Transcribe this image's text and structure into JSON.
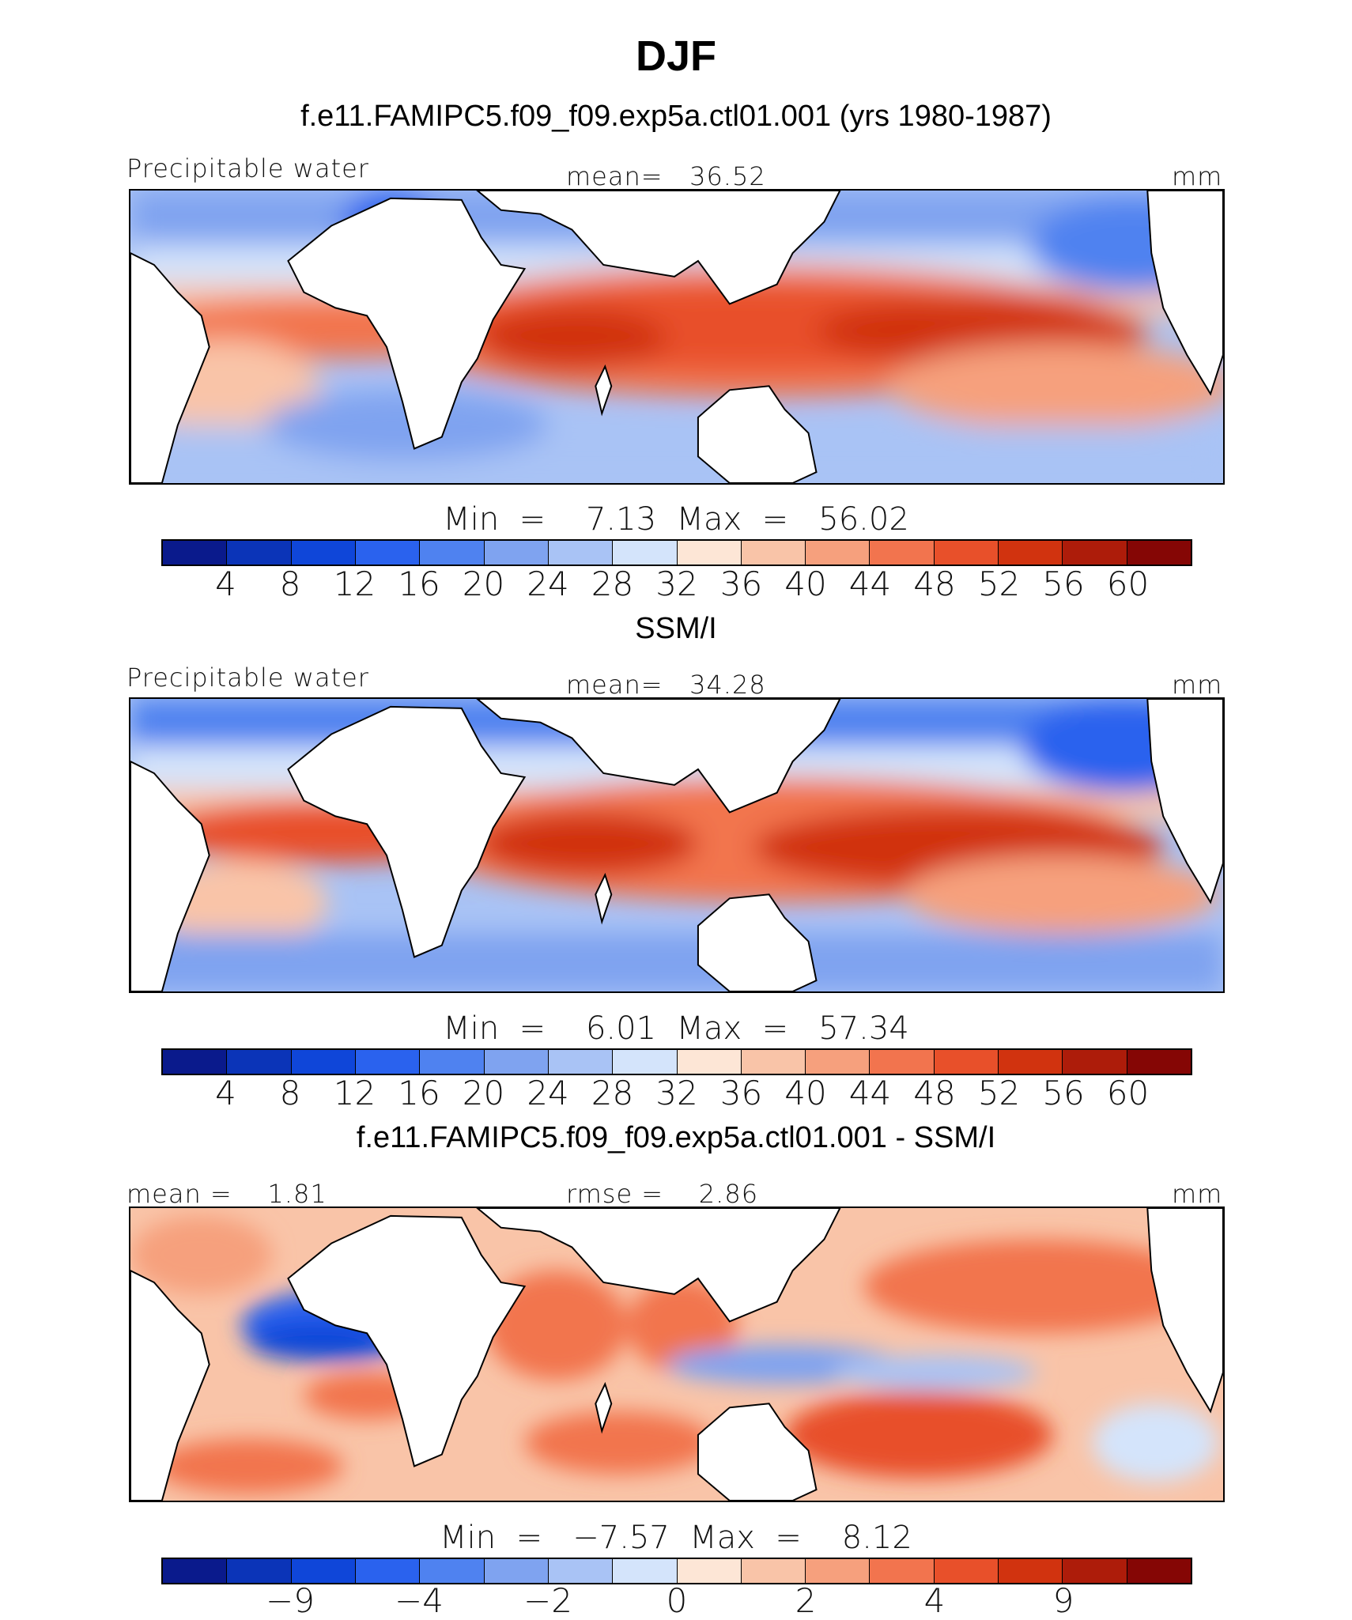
{
  "title": "DJF",
  "panels": [
    {
      "subtitle": "f.e11.FAMIPC5.f09_f09.exp5a.ctl01.001 (yrs 1980-1987)",
      "left_label": "Precipitable water",
      "center_label": "mean=   36.52",
      "right_label": "mm",
      "stats": "Min  =    7.13  Max  =   56.02",
      "map_type": "model",
      "colorbar": {
        "colors": [
          "#0a1a8c",
          "#0b34b8",
          "#0f46d9",
          "#2a62ee",
          "#4f82f0",
          "#7fa3f0",
          "#a9c3f5",
          "#d4e4fb",
          "#fde6d6",
          "#f9c4a8",
          "#f6a07d",
          "#f2744e",
          "#e8502a",
          "#d1330f",
          "#ad1c0a",
          "#850605"
        ],
        "ticks": [
          "4",
          "8",
          "12",
          "16",
          "20",
          "24",
          "28",
          "32",
          "36",
          "40",
          "44",
          "48",
          "52",
          "56",
          "60"
        ]
      }
    },
    {
      "subtitle": "SSM/I",
      "left_label": "Precipitable water",
      "center_label": "mean=   34.28",
      "right_label": "mm",
      "stats": "Min  =    6.01  Max  =   57.34",
      "map_type": "obs",
      "colorbar": {
        "colors": [
          "#0a1a8c",
          "#0b34b8",
          "#0f46d9",
          "#2a62ee",
          "#4f82f0",
          "#7fa3f0",
          "#a9c3f5",
          "#d4e4fb",
          "#fde6d6",
          "#f9c4a8",
          "#f6a07d",
          "#f2744e",
          "#e8502a",
          "#d1330f",
          "#ad1c0a",
          "#850605"
        ],
        "ticks": [
          "4",
          "8",
          "12",
          "16",
          "20",
          "24",
          "28",
          "32",
          "36",
          "40",
          "44",
          "48",
          "52",
          "56",
          "60"
        ]
      }
    },
    {
      "subtitle": "f.e11.FAMIPC5.f09_f09.exp5a.ctl01.001 - SSM/I",
      "left_label": "mean =    1.81",
      "center_label": "rmse =    2.86",
      "right_label": "mm",
      "stats": "Min  =   −7.57  Max  =    8.12",
      "map_type": "diff",
      "colorbar": {
        "colors": [
          "#0a1a8c",
          "#0b34b8",
          "#0f46d9",
          "#2a62ee",
          "#4f82f0",
          "#7fa3f0",
          "#a9c3f5",
          "#d4e4fb",
          "#fde6d6",
          "#f9c4a8",
          "#f6a07d",
          "#f2744e",
          "#e8502a",
          "#d1330f",
          "#ad1c0a",
          "#850605"
        ],
        "ticks": [
          "−9",
          "−4",
          "−2",
          "0",
          "2",
          "4",
          "9"
        ],
        "tick_positions": [
          2,
          4,
          6,
          8,
          10,
          12,
          14
        ]
      }
    }
  ]
}
